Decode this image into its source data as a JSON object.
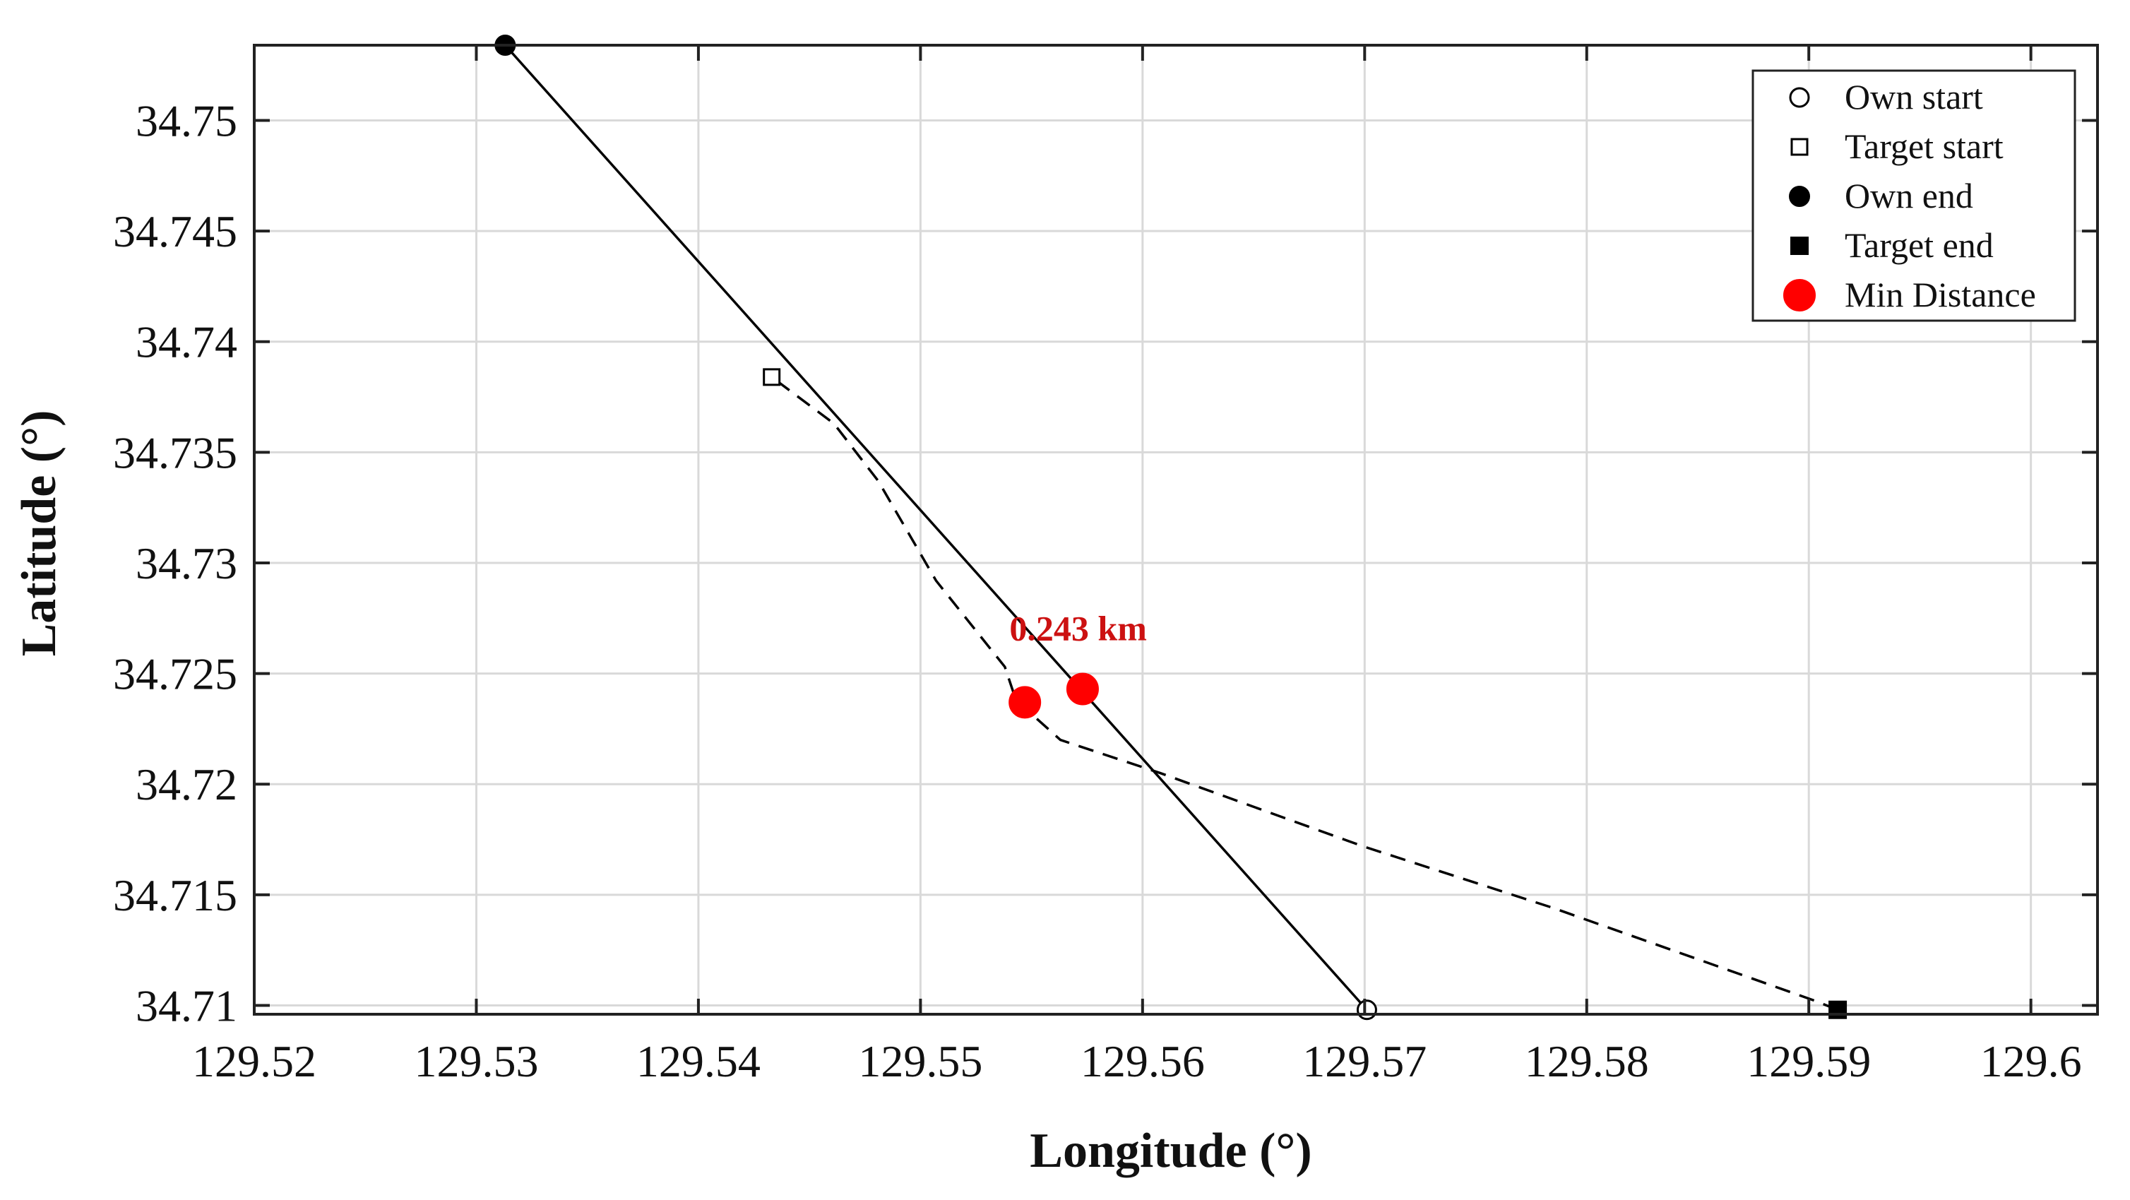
{
  "chart_data": {
    "type": "scatter",
    "title": "",
    "xlabel": "Longitude (°)",
    "ylabel": "Latitude (°)",
    "xlim": [
      129.52,
      129.603
    ],
    "ylim": [
      34.7096,
      34.7534
    ],
    "x_ticks": [
      129.52,
      129.53,
      129.54,
      129.55,
      129.56,
      129.57,
      129.58,
      129.59,
      129.6
    ],
    "x_tick_labels": [
      "129.52",
      "129.53",
      "129.54",
      "129.55",
      "129.56",
      "129.57",
      "129.58",
      "129.59",
      "129.6"
    ],
    "y_ticks": [
      34.71,
      34.715,
      34.72,
      34.725,
      34.73,
      34.735,
      34.74,
      34.745,
      34.75
    ],
    "y_tick_labels": [
      "34.71",
      "34.715",
      "34.72",
      "34.725",
      "34.73",
      "34.735",
      "34.74",
      "34.745",
      "34.75"
    ],
    "grid": true,
    "legend_position": "top-right",
    "series": [
      {
        "name": "",
        "style": "solid",
        "color": "#000000",
        "x": [
          129.5701,
          129.5313
        ],
        "y": [
          34.7098,
          34.7534
        ]
      },
      {
        "name": "",
        "style": "dashed",
        "color": "#000000",
        "x": [
          129.5913,
          129.5903,
          129.5785,
          129.5699,
          129.5608,
          129.5563,
          129.5543,
          129.5538,
          129.5507,
          129.5481,
          129.5461,
          129.5433
        ],
        "y": [
          34.7098,
          34.7102,
          34.7144,
          34.7172,
          34.7205,
          34.722,
          34.7238,
          34.7253,
          34.7292,
          34.7337,
          34.7363,
          34.7384
        ]
      }
    ],
    "markers": [
      {
        "name": "Own start",
        "shape": "circle-open",
        "color": "#000000",
        "x": 129.5701,
        "y": 34.7098
      },
      {
        "name": "Target start",
        "shape": "square-open",
        "color": "#000000",
        "x": 129.5433,
        "y": 34.7384
      },
      {
        "name": "Own end",
        "shape": "circle-filled",
        "color": "#000000",
        "x": 129.5313,
        "y": 34.7534
      },
      {
        "name": "Target end",
        "shape": "square-filled",
        "color": "#000000",
        "x": 129.5913,
        "y": 34.7098
      }
    ],
    "min_distance_points": [
      {
        "x": 129.5547,
        "y": 34.7237
      },
      {
        "x": 129.5573,
        "y": 34.7243
      }
    ],
    "min_distance_color": "#ff0000",
    "legend": [
      "Own start",
      "Target start",
      "Own end",
      "Target end",
      "Min Distance"
    ],
    "annotations": [
      {
        "text": "0.243 km",
        "x": 129.5571,
        "y": 34.7265,
        "color": "#cc1111"
      }
    ]
  }
}
